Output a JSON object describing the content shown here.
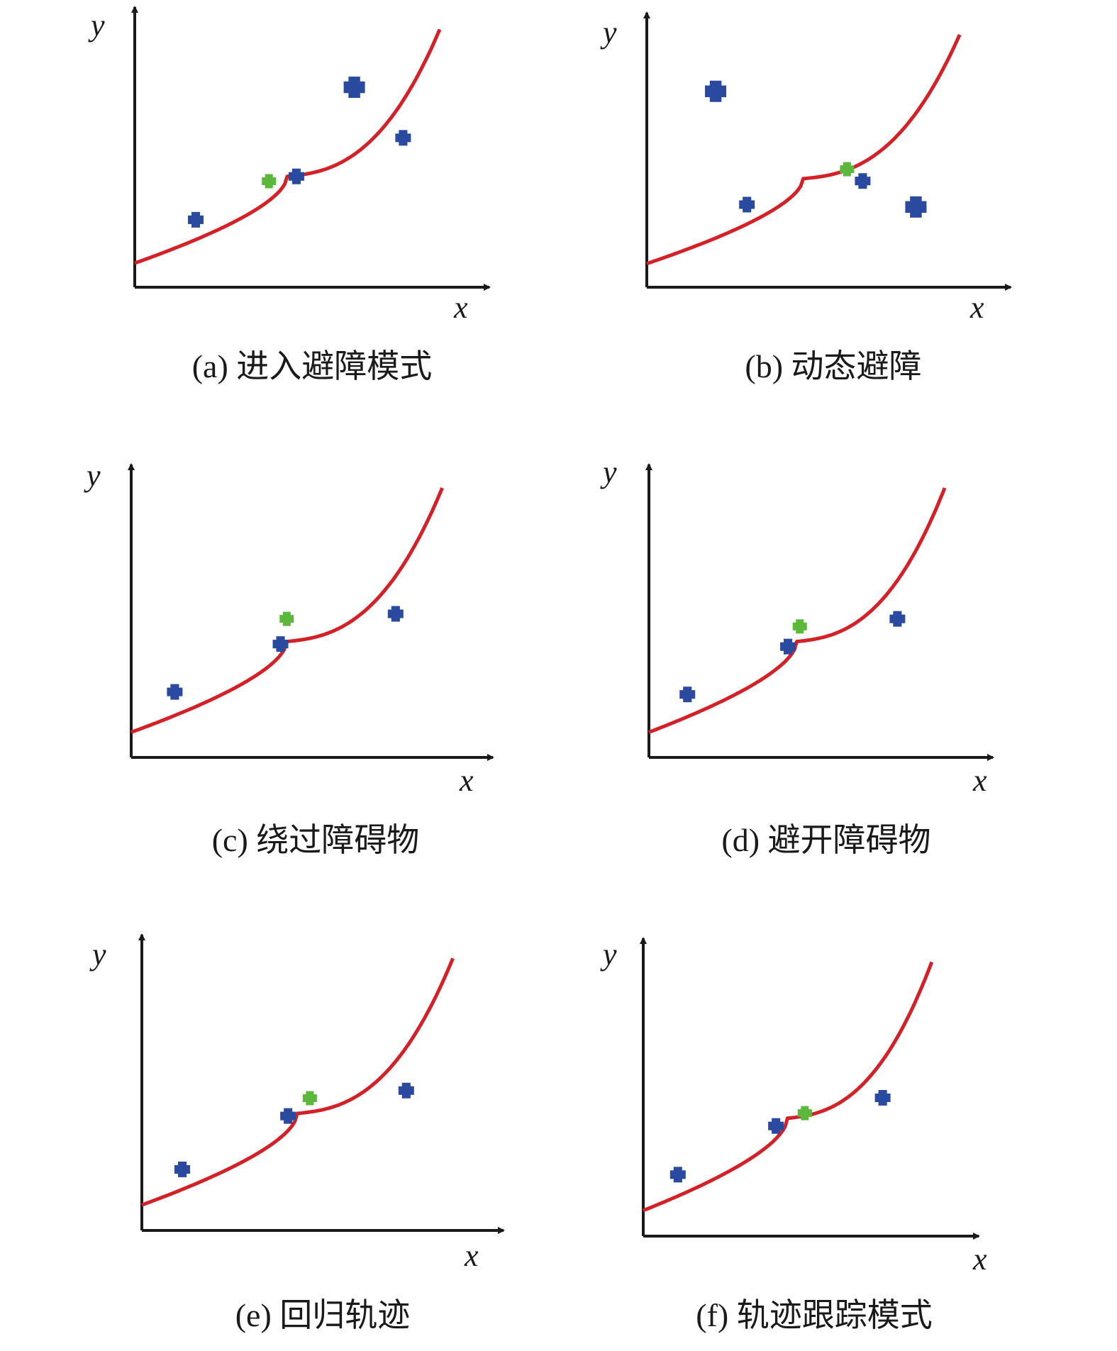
{
  "figure": {
    "colors": {
      "axis": "#1a1a1a",
      "trajectory": "#d42027",
      "waypoint": "#2a4aa0",
      "obstacle": "#2a4aa0",
      "robot": "#5cb83a"
    },
    "panels": [
      {
        "id": "a",
        "caption": "(a) 进入避障模式",
        "x_label": "x",
        "y_label": "y",
        "waypoints": [
          [
            0.2,
            0.28
          ],
          [
            0.53,
            0.46
          ],
          [
            0.88,
            0.62
          ]
        ],
        "robot": [
          [
            0.44,
            0.44
          ]
        ],
        "obstacles": [
          [
            0.72,
            0.83
          ]
        ]
      },
      {
        "id": "b",
        "caption": "(b) 动态避障",
        "x_label": "x",
        "y_label": "y",
        "waypoints": [
          [
            0.32,
            0.35
          ],
          [
            0.69,
            0.45
          ]
        ],
        "robot": [
          [
            0.64,
            0.5
          ]
        ],
        "obstacles": [
          [
            0.22,
            0.83
          ],
          [
            0.86,
            0.34
          ]
        ]
      },
      {
        "id": "c",
        "caption": "(c) 绕过障碍物",
        "x_label": "x",
        "y_label": "y",
        "waypoints": [
          [
            0.14,
            0.26
          ],
          [
            0.48,
            0.45
          ],
          [
            0.85,
            0.57
          ]
        ],
        "robot": [
          [
            0.5,
            0.55
          ]
        ],
        "obstacles": []
      },
      {
        "id": "d",
        "caption": "(d) 避开障碍物",
        "x_label": "x",
        "y_label": "y",
        "waypoints": [
          [
            0.13,
            0.25
          ],
          [
            0.47,
            0.44
          ],
          [
            0.84,
            0.55
          ]
        ],
        "robot": [
          [
            0.51,
            0.52
          ]
        ],
        "obstacles": []
      },
      {
        "id": "e",
        "caption": "(e) 回归轨迹",
        "x_label": "x",
        "y_label": "y",
        "waypoints": [
          [
            0.13,
            0.24
          ],
          [
            0.47,
            0.45
          ],
          [
            0.85,
            0.55
          ]
        ],
        "robot": [
          [
            0.54,
            0.52
          ]
        ],
        "obstacles": []
      },
      {
        "id": "f",
        "caption": "(f) 轨迹跟踪模式",
        "x_label": "x",
        "y_label": "y",
        "waypoints": [
          [
            0.12,
            0.24
          ],
          [
            0.46,
            0.43
          ],
          [
            0.83,
            0.54
          ]
        ],
        "robot": [
          [
            0.56,
            0.48
          ]
        ],
        "obstacles": []
      }
    ]
  }
}
